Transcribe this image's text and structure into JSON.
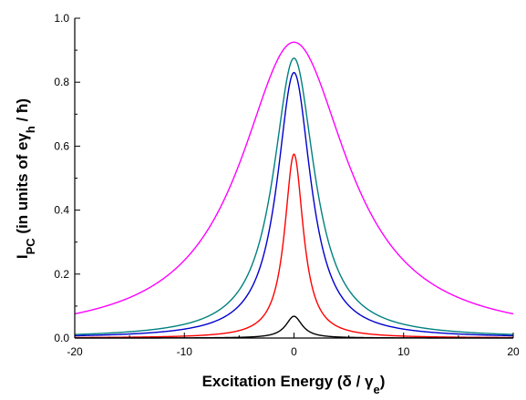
{
  "chart_data": {
    "type": "line",
    "xlabel": {
      "main": "Excitation Energy (δ / γ",
      "sub": "e",
      "tail": ")"
    },
    "ylabel": {
      "main": "I",
      "sub1": "PC",
      "mid": " (in units of eγ",
      "sub2": "h",
      "tail": " / ħ)"
    },
    "xlim": [
      -20,
      20
    ],
    "ylim": [
      0,
      1.0
    ],
    "xticks": [
      -20,
      -10,
      0,
      10,
      20
    ],
    "xtick_labels": [
      "-20",
      "-10",
      "0",
      "10",
      "20"
    ],
    "yticks": [
      0.0,
      0.2,
      0.4,
      0.6,
      0.8,
      1.0
    ],
    "ytick_labels": [
      "0.0",
      "0.2",
      "0.4",
      "0.6",
      "0.8",
      "1.0"
    ],
    "grid": false,
    "series": [
      {
        "color": "#ff00ff",
        "peak": 0.925,
        "x": [
          -20,
          -15,
          -10,
          -6,
          -4,
          -2,
          -1,
          0,
          1,
          2,
          4,
          6,
          10,
          15,
          20
        ],
        "y": [
          0.088,
          0.145,
          0.265,
          0.46,
          0.615,
          0.815,
          0.895,
          0.925,
          0.895,
          0.815,
          0.615,
          0.46,
          0.265,
          0.145,
          0.088
        ]
      },
      {
        "color": "#008080",
        "peak": 0.875,
        "x": [
          -20,
          -15,
          -10,
          -6,
          -4,
          -2,
          -1,
          0,
          1,
          2,
          4,
          6,
          10,
          15,
          20
        ],
        "y": [
          0.012,
          0.02,
          0.045,
          0.11,
          0.22,
          0.48,
          0.72,
          0.875,
          0.72,
          0.48,
          0.22,
          0.11,
          0.045,
          0.02,
          0.012
        ]
      },
      {
        "color": "#0000cc",
        "peak": 0.83,
        "x": [
          -20,
          -15,
          -10,
          -6,
          -4,
          -2,
          -1,
          0,
          1,
          2,
          4,
          6,
          10,
          15,
          20
        ],
        "y": [
          0.006,
          0.012,
          0.028,
          0.075,
          0.16,
          0.4,
          0.65,
          0.83,
          0.65,
          0.4,
          0.16,
          0.075,
          0.028,
          0.012,
          0.006
        ]
      },
      {
        "color": "#ff0000",
        "peak": 0.575,
        "x": [
          -20,
          -15,
          -10,
          -6,
          -4,
          -2,
          -1,
          0,
          1,
          2,
          4,
          6,
          10,
          15,
          20
        ],
        "y": [
          0.002,
          0.003,
          0.006,
          0.016,
          0.035,
          0.11,
          0.26,
          0.575,
          0.26,
          0.11,
          0.035,
          0.016,
          0.006,
          0.003,
          0.002
        ]
      },
      {
        "color": "#000000",
        "peak": 0.068,
        "x": [
          -20,
          -15,
          -10,
          -6,
          -4,
          -2,
          -1,
          0,
          1,
          2,
          4,
          6,
          10,
          15,
          20
        ],
        "y": [
          0.0,
          0.0,
          0.001,
          0.002,
          0.003,
          0.008,
          0.022,
          0.068,
          0.022,
          0.008,
          0.003,
          0.002,
          0.001,
          0.0,
          0.0
        ]
      }
    ]
  }
}
